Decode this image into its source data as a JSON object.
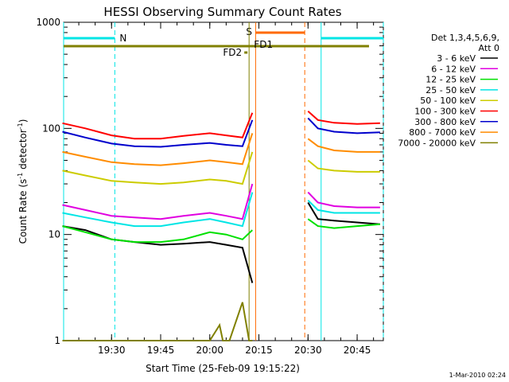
{
  "chart_data": {
    "type": "line",
    "title": "HESSI Observing Summary Count Rates",
    "xlabel": "Start Time (25-Feb-09 19:15:22)",
    "ylabel_main": "Count Rate (s",
    "ylabel_sup1": "-1",
    "ylabel_mid": " detector",
    "ylabel_sup2": "-1",
    "ylabel_end": ")",
    "y_scale": "log",
    "ylim": [
      1,
      1000
    ],
    "xlim": [
      "19:15:22",
      "20:53:00"
    ],
    "x_ticks": [
      "19:30",
      "19:45",
      "20:00",
      "20:15",
      "20:30",
      "20:45"
    ],
    "y_ticks": [
      {
        "value": 1,
        "label": "1"
      },
      {
        "value": 10,
        "label": "10"
      },
      {
        "value": 100,
        "label": "100"
      },
      {
        "value": 1000,
        "label": "1000"
      }
    ],
    "legend_header": [
      "Det 1,3,4,5,6,9,",
      "Att 0"
    ],
    "legend_position": "right",
    "footer": "1-Mar-2010 02:24",
    "colors": {
      "night": "#00e5e5",
      "saa": "#ff6a00",
      "flare": "#808000"
    },
    "flag_labels": {
      "night": "N",
      "saa": "S",
      "fd1": "FD1",
      "fd2": "FD2"
    },
    "intervals": {
      "night": [
        [
          "19:15:22",
          "19:31:00"
        ],
        [
          "20:34:00",
          "20:53:00"
        ]
      ],
      "saa": [
        "20:14:00",
        "20:29:00"
      ],
      "data_gap": [
        "20:14:30",
        "20:29:30"
      ]
    },
    "series": [
      {
        "name": "3 - 6 keV",
        "color": "#000000",
        "x": [
          "19:15",
          "19:22",
          "19:30",
          "19:37",
          "19:45",
          "19:52",
          "20:00",
          "20:05",
          "20:10",
          "20:13",
          "20:30",
          "20:33",
          "20:38",
          "20:45",
          "20:52"
        ],
        "y": [
          12,
          11,
          9,
          8.5,
          8,
          8.2,
          8.5,
          8,
          7.5,
          3.5,
          20,
          14,
          13.5,
          13,
          12.5
        ]
      },
      {
        "name": "6 - 12 keV",
        "color": "#e000e0",
        "x": [
          "19:15",
          "19:22",
          "19:30",
          "19:37",
          "19:45",
          "19:52",
          "20:00",
          "20:05",
          "20:10",
          "20:13",
          "20:30",
          "20:33",
          "20:38",
          "20:45",
          "20:52"
        ],
        "y": [
          19,
          17,
          15,
          14.5,
          14,
          15,
          16,
          15,
          14,
          30,
          25,
          20,
          18.5,
          18,
          18
        ]
      },
      {
        "name": "12 - 25 keV",
        "color": "#00e000",
        "x": [
          "19:15",
          "19:22",
          "19:30",
          "19:37",
          "19:45",
          "19:52",
          "20:00",
          "20:05",
          "20:10",
          "20:13",
          "20:30",
          "20:33",
          "20:38",
          "20:45",
          "20:52"
        ],
        "y": [
          12,
          10.5,
          9,
          8.5,
          8.5,
          9,
          10.5,
          10,
          9,
          11,
          14,
          12,
          11.5,
          12,
          12.5
        ]
      },
      {
        "name": "25 - 50 keV",
        "color": "#00e5e5",
        "x": [
          "19:15",
          "19:22",
          "19:30",
          "19:37",
          "19:45",
          "19:52",
          "20:00",
          "20:05",
          "20:10",
          "20:13",
          "20:30",
          "20:33",
          "20:38",
          "20:45",
          "20:52"
        ],
        "y": [
          16,
          14.5,
          13,
          12,
          12,
          13,
          14,
          13,
          12,
          25,
          21,
          17,
          16,
          16,
          16
        ]
      },
      {
        "name": "50 - 100 keV",
        "color": "#cccc00",
        "x": [
          "19:15",
          "19:22",
          "19:30",
          "19:37",
          "19:45",
          "19:52",
          "20:00",
          "20:05",
          "20:10",
          "20:13",
          "20:30",
          "20:33",
          "20:38",
          "20:45",
          "20:52"
        ],
        "y": [
          40,
          36,
          32,
          31,
          30,
          31,
          33,
          32,
          30,
          60,
          50,
          42,
          40,
          39,
          39
        ]
      },
      {
        "name": "100 - 300 keV",
        "color": "#ff0000",
        "x": [
          "19:15",
          "19:22",
          "19:30",
          "19:37",
          "19:45",
          "19:52",
          "20:00",
          "20:05",
          "20:10",
          "20:13",
          "20:30",
          "20:33",
          "20:38",
          "20:45",
          "20:52"
        ],
        "y": [
          112,
          100,
          86,
          80,
          80,
          85,
          90,
          86,
          82,
          140,
          145,
          120,
          113,
          110,
          112
        ]
      },
      {
        "name": "300 - 800 keV",
        "color": "#0000cc",
        "x": [
          "19:15",
          "19:22",
          "19:30",
          "19:37",
          "19:45",
          "19:52",
          "20:00",
          "20:05",
          "20:10",
          "20:13",
          "20:30",
          "20:33",
          "20:38",
          "20:45",
          "20:52"
        ],
        "y": [
          93,
          82,
          72,
          68,
          67,
          70,
          73,
          70,
          68,
          120,
          125,
          100,
          93,
          90,
          92
        ]
      },
      {
        "name": "800 - 7000 keV",
        "color": "#ff8c00",
        "x": [
          "19:15",
          "19:22",
          "19:30",
          "19:37",
          "19:45",
          "19:52",
          "20:00",
          "20:05",
          "20:10",
          "20:13",
          "20:30",
          "20:33",
          "20:38",
          "20:45",
          "20:52"
        ],
        "y": [
          60,
          54,
          48,
          46,
          45,
          47,
          50,
          48,
          46,
          90,
          80,
          68,
          62,
          60,
          60
        ]
      },
      {
        "name": "7000 - 20000 keV",
        "color": "#808000",
        "x": [
          "19:15",
          "19:30",
          "19:45",
          "20:00",
          "20:03",
          "20:04",
          "20:06",
          "20:10",
          "20:12",
          "20:13"
        ],
        "y": [
          1,
          1,
          1,
          1,
          1.4,
          1,
          1,
          2.3,
          1,
          1
        ]
      }
    ]
  }
}
